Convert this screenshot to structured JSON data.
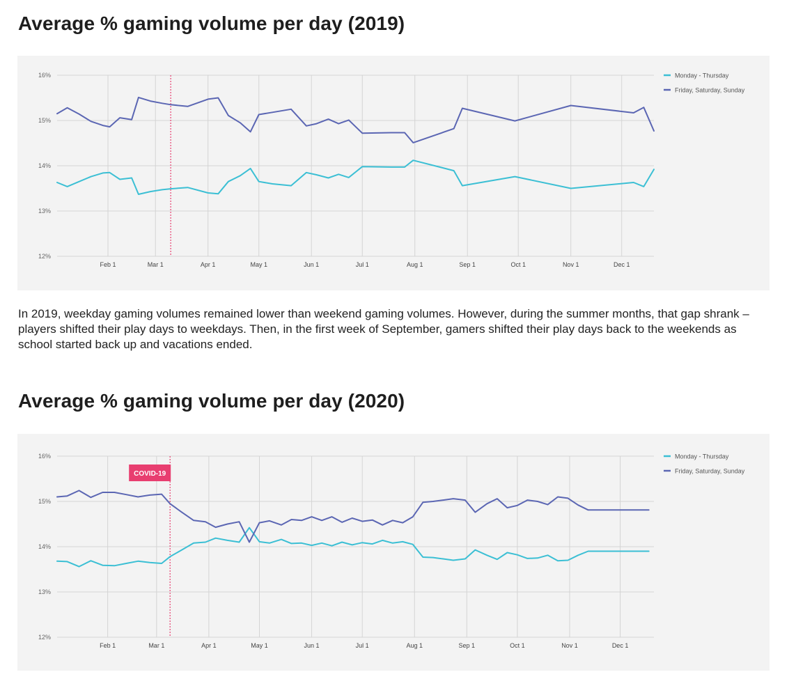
{
  "heading_2019": "Average % gaming volume per day (2019)",
  "paragraph_2019": "In 2019, weekday gaming volumes remained lower than weekend gaming volumes. However, during the summer months, that gap shrank – players shifted their play days to weekdays. Then, in the first week of September, gamers shifted their play days back to the weekends as school started back up and vacations ended.",
  "heading_2020": "Average % gaming volume per day (2020)",
  "colors": {
    "weekday": "#3bbfd4",
    "weekend": "#5b66b3",
    "marker": "#e83e70",
    "grid": "#d4d4d4",
    "background": "#f3f3f3"
  },
  "chart_data": [
    {
      "type": "line",
      "title": "Average % gaming volume per day (2019)",
      "xlabel": "",
      "ylabel": "",
      "ylim": [
        12,
        16
      ],
      "y_ticks": [
        "12%",
        "13%",
        "14%",
        "15%",
        "16%"
      ],
      "x_ticks": [
        {
          "label": "Feb 1",
          "day": 31
        },
        {
          "label": "Mar 1",
          "day": 59
        },
        {
          "label": "Apr 1",
          "day": 90
        },
        {
          "label": "May 1",
          "day": 120
        },
        {
          "label": "Jun 1",
          "day": 151
        },
        {
          "label": "Jul 1",
          "day": 181
        },
        {
          "label": "Aug 1",
          "day": 212
        },
        {
          "label": "Sep 1",
          "day": 243
        },
        {
          "label": "Oct 1",
          "day": 273
        },
        {
          "label": "Nov 1",
          "day": 304
        },
        {
          "label": "Dec 1",
          "day": 334
        }
      ],
      "xlim": [
        1,
        353
      ],
      "marker_day": 68,
      "legend": [
        "Monday - Thursday",
        "Friday, Saturday, Sunday"
      ],
      "legend_position": "top-right",
      "series": [
        {
          "name": "Monday - Thursday",
          "x": [
            1,
            7,
            14,
            21,
            28,
            32,
            38,
            45,
            49,
            56,
            63,
            68,
            78,
            90,
            96,
            102,
            109,
            115,
            120,
            128,
            139,
            148,
            154,
            161,
            167,
            173,
            181,
            198,
            206,
            211,
            235,
            240,
            271,
            304,
            341,
            347,
            353
          ],
          "y": [
            13.63,
            13.54,
            13.65,
            13.76,
            13.84,
            13.85,
            13.7,
            13.73,
            13.37,
            13.43,
            13.47,
            13.49,
            13.52,
            13.4,
            13.38,
            13.65,
            13.78,
            13.94,
            13.65,
            13.6,
            13.56,
            13.85,
            13.8,
            13.73,
            13.81,
            13.74,
            13.98,
            13.97,
            13.97,
            14.12,
            13.89,
            13.56,
            13.76,
            13.5,
            13.63,
            13.54,
            13.92
          ]
        },
        {
          "name": "Friday, Saturday, Sunday",
          "x": [
            1,
            7,
            14,
            21,
            28,
            32,
            38,
            45,
            49,
            56,
            63,
            68,
            78,
            90,
            96,
            102,
            109,
            115,
            120,
            128,
            139,
            148,
            154,
            161,
            167,
            173,
            181,
            198,
            206,
            211,
            235,
            240,
            271,
            304,
            341,
            347,
            353
          ],
          "y": [
            15.15,
            15.28,
            15.14,
            14.98,
            14.89,
            14.86,
            15.06,
            15.02,
            15.51,
            15.43,
            15.38,
            15.35,
            15.31,
            15.47,
            15.5,
            15.11,
            14.95,
            14.75,
            15.13,
            15.18,
            15.25,
            14.88,
            14.93,
            15.03,
            14.93,
            15.01,
            14.72,
            14.73,
            14.73,
            14.51,
            14.82,
            15.27,
            14.99,
            15.33,
            15.17,
            15.29,
            14.77
          ]
        }
      ]
    },
    {
      "type": "line",
      "title": "Average % gaming volume per day (2020)",
      "xlabel": "",
      "ylabel": "",
      "ylim": [
        12,
        16
      ],
      "y_ticks": [
        "12%",
        "13%",
        "14%",
        "15%",
        "16%"
      ],
      "x_ticks": [
        {
          "label": "Feb 1",
          "day": 31
        },
        {
          "label": "Mar 1",
          "day": 60
        },
        {
          "label": "Apr 1",
          "day": 91
        },
        {
          "label": "May 1",
          "day": 121
        },
        {
          "label": "Jun 1",
          "day": 152
        },
        {
          "label": "Jul 1",
          "day": 182
        },
        {
          "label": "Aug 1",
          "day": 213
        },
        {
          "label": "Sep 1",
          "day": 244
        },
        {
          "label": "Oct 1",
          "day": 274
        },
        {
          "label": "Nov 1",
          "day": 305
        },
        {
          "label": "Dec 1",
          "day": 335
        }
      ],
      "xlim": [
        1,
        355
      ],
      "marker_day": 68,
      "annotation": "COVID-19",
      "legend": [
        "Monday - Thursday",
        "Friday, Saturday, Sunday"
      ],
      "legend_position": "top-right",
      "series": [
        {
          "name": "Monday - Thursday",
          "x": [
            1,
            7,
            14,
            21,
            28,
            35,
            42,
            49,
            56,
            63,
            68,
            75,
            82,
            89,
            95,
            102,
            109,
            115,
            121,
            127,
            134,
            140,
            146,
            152,
            158,
            164,
            170,
            176,
            182,
            188,
            194,
            200,
            206,
            212,
            218,
            224,
            230,
            236,
            243,
            249,
            256,
            262,
            268,
            274,
            280,
            286,
            292,
            298,
            304,
            310,
            316,
            322,
            328,
            334,
            340,
            346,
            352
          ],
          "y": [
            13.68,
            13.67,
            13.56,
            13.69,
            13.59,
            13.58,
            13.63,
            13.68,
            13.65,
            13.63,
            13.78,
            13.93,
            14.08,
            14.1,
            14.19,
            14.14,
            14.1,
            14.42,
            14.11,
            14.08,
            14.16,
            14.07,
            14.08,
            14.03,
            14.08,
            14.02,
            14.1,
            14.04,
            14.09,
            14.06,
            14.14,
            14.08,
            14.11,
            14.05,
            13.77,
            13.76,
            13.73,
            13.7,
            13.73,
            13.93,
            13.81,
            13.72,
            13.87,
            13.82,
            13.74,
            13.75,
            13.81,
            13.69,
            13.7,
            13.81,
            13.9,
            13.9,
            13.9,
            13.9,
            13.9,
            13.9,
            13.9
          ]
        },
        {
          "name": "Friday, Saturday, Sunday",
          "x": [
            1,
            7,
            14,
            21,
            28,
            35,
            42,
            49,
            56,
            63,
            68,
            75,
            82,
            89,
            95,
            102,
            109,
            115,
            121,
            127,
            134,
            140,
            146,
            152,
            158,
            164,
            170,
            176,
            182,
            188,
            194,
            200,
            206,
            212,
            218,
            224,
            230,
            236,
            243,
            249,
            256,
            262,
            268,
            274,
            280,
            286,
            292,
            298,
            304,
            310,
            316,
            322,
            328,
            334,
            340,
            346,
            352
          ],
          "y": [
            15.1,
            15.12,
            15.24,
            15.09,
            15.2,
            15.2,
            15.15,
            15.1,
            15.14,
            15.16,
            14.95,
            14.76,
            14.58,
            14.55,
            14.43,
            14.5,
            14.55,
            14.1,
            14.53,
            14.57,
            14.48,
            14.6,
            14.58,
            14.66,
            14.58,
            14.66,
            14.54,
            14.63,
            14.56,
            14.59,
            14.48,
            14.58,
            14.53,
            14.66,
            14.98,
            15.0,
            15.03,
            15.06,
            15.03,
            14.76,
            14.95,
            15.06,
            14.86,
            14.91,
            15.03,
            15.0,
            14.93,
            15.1,
            15.07,
            14.92,
            14.81,
            14.81,
            14.81,
            14.81,
            14.81,
            14.81,
            14.81
          ]
        }
      ]
    }
  ]
}
